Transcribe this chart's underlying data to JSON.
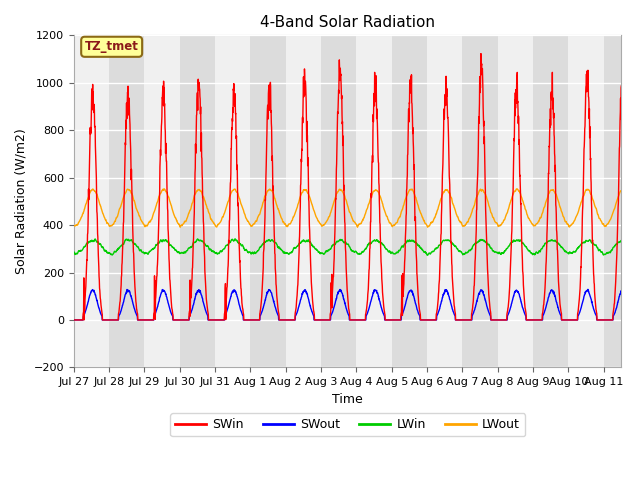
{
  "title": "4-Band Solar Radiation",
  "xlabel": "Time",
  "ylabel": "Solar Radiation (W/m2)",
  "ylim": [
    -200,
    1200
  ],
  "yticks": [
    -200,
    0,
    200,
    400,
    600,
    800,
    1000,
    1200
  ],
  "annotation_text": "TZ_tmet",
  "annotation_color": "#8B1A1A",
  "annotation_border": "#8B6914",
  "annotation_bg": "#FFFF99",
  "colors": {
    "SWin": "#FF0000",
    "SWout": "#0000FF",
    "LWin": "#00CC00",
    "LWout": "#FFA500"
  },
  "x_tick_labels": [
    "Jul 27",
    "Jul 28",
    "Jul 29",
    "Jul 30",
    "Jul 31",
    "Aug 1",
    "Aug 2",
    "Aug 3",
    "Aug 4",
    "Aug 5",
    "Aug 6",
    "Aug 7",
    "Aug 8",
    "Aug 9",
    "Aug 10",
    "Aug 11"
  ],
  "num_days": 15.5,
  "points_per_day": 144,
  "band_colors": [
    "#F0F0F0",
    "#DCDCDC"
  ],
  "plot_bg": "#FFFFFF",
  "grid_color": "#CCCCCC"
}
